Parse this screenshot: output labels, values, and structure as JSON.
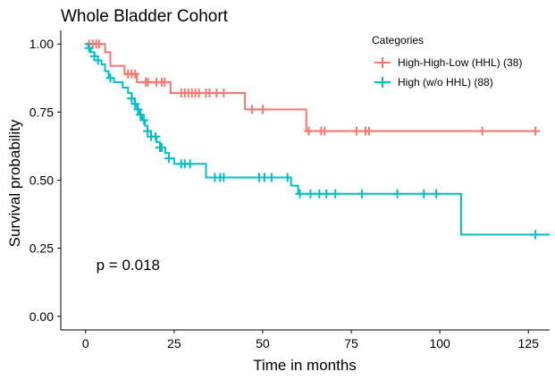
{
  "chart_data": {
    "type": "line",
    "title": "Whole Bladder Cohort",
    "xlabel": "Time in months",
    "ylabel": "Survival probability",
    "xlim": [
      -7,
      131
    ],
    "ylim": [
      -0.05,
      1.05
    ],
    "xticks": [
      0,
      25,
      50,
      75,
      100,
      125
    ],
    "yticks": [
      0.0,
      0.25,
      0.5,
      0.75,
      1.0
    ],
    "xtick_labels": [
      "0",
      "25",
      "50",
      "75",
      "100",
      "125"
    ],
    "ytick_labels": [
      "0.00",
      "0.25",
      "0.50",
      "0.75",
      "1.00"
    ],
    "legend": {
      "title": "Categories",
      "position": "top-right"
    },
    "annotation": "p = 0.018",
    "annotation_pos": {
      "x": 3,
      "y": 0.19
    },
    "series": [
      {
        "name": "High-High-Low (HHL) (38)",
        "color": "#F8766D",
        "steps": [
          [
            0,
            1.0
          ],
          [
            5.5,
            0.97
          ],
          [
            7,
            0.92
          ],
          [
            11,
            0.89
          ],
          [
            14.5,
            0.86
          ],
          [
            24,
            0.82
          ],
          [
            45,
            0.76
          ],
          [
            62.3,
            0.68
          ],
          [
            128,
            0.68
          ]
        ],
        "censor": [
          1,
          2,
          3,
          3.8,
          12,
          13,
          14,
          17,
          17.6,
          20,
          21.5,
          22.3,
          27,
          28,
          29,
          30,
          31,
          32,
          34,
          35,
          37,
          39,
          47,
          50,
          63,
          66.5,
          67.5,
          76.5,
          79,
          80,
          112,
          127
        ]
      },
      {
        "name": "High (w/o HHL) (88)",
        "color": "#00BFC4",
        "steps": [
          [
            0,
            1.0
          ],
          [
            0.8,
            0.985
          ],
          [
            1.5,
            0.97
          ],
          [
            2.5,
            0.955
          ],
          [
            3.5,
            0.94
          ],
          [
            4.5,
            0.925
          ],
          [
            5.5,
            0.9
          ],
          [
            6.5,
            0.875
          ],
          [
            8,
            0.86
          ],
          [
            10.5,
            0.84
          ],
          [
            12,
            0.82
          ],
          [
            13,
            0.8
          ],
          [
            13.8,
            0.78
          ],
          [
            14.5,
            0.76
          ],
          [
            15.2,
            0.74
          ],
          [
            16,
            0.72
          ],
          [
            16.8,
            0.7
          ],
          [
            17.5,
            0.68
          ],
          [
            18.5,
            0.66
          ],
          [
            20,
            0.64
          ],
          [
            21,
            0.62
          ],
          [
            22.5,
            0.6
          ],
          [
            23.5,
            0.58
          ],
          [
            25,
            0.56
          ],
          [
            34,
            0.51
          ],
          [
            58,
            0.48
          ],
          [
            60,
            0.45
          ],
          [
            106,
            0.3
          ],
          [
            131,
            0.3
          ]
        ],
        "censor": [
          1,
          2.5,
          3.5,
          7,
          13,
          14,
          14.8,
          15.5,
          16.5,
          17.5,
          18.5,
          19.8,
          21,
          21.5,
          23.5,
          27,
          28,
          29.5,
          36.5,
          38,
          39,
          49,
          50.5,
          52.5,
          57,
          60.5,
          63.5,
          66,
          68,
          70.5,
          78,
          88,
          95.5,
          99,
          127
        ]
      }
    ]
  }
}
